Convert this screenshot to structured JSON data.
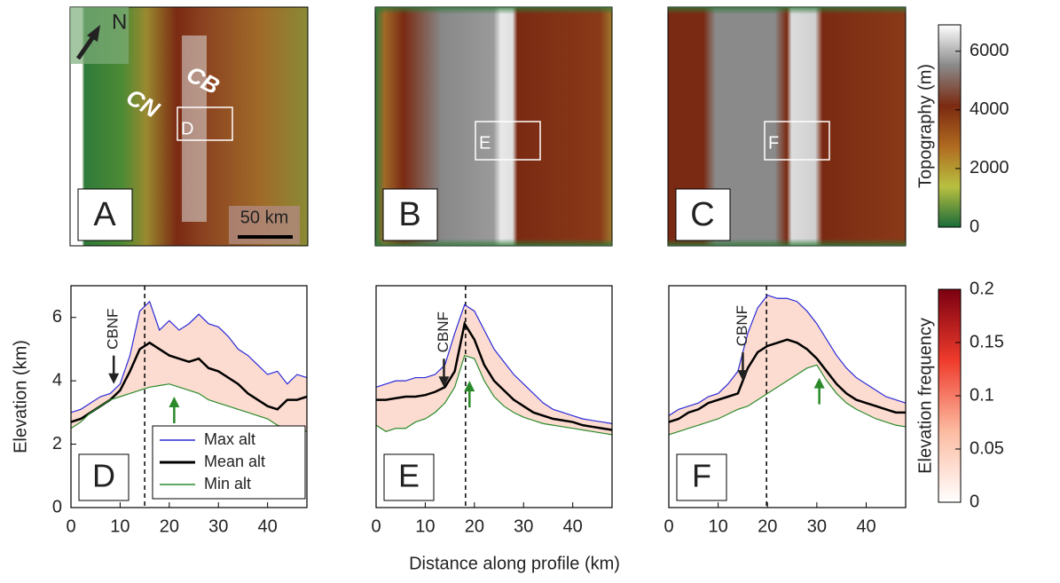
{
  "xlabel": "Distance along profile (km)",
  "maps": [
    {
      "panel": "A",
      "north": "N",
      "labels": [
        "CN",
        "CB"
      ],
      "box": "D",
      "scale": "50 km"
    },
    {
      "panel": "B",
      "box": "E"
    },
    {
      "panel": "C",
      "box": "F"
    }
  ],
  "chart_data": [
    {
      "type": "line",
      "panel": "D",
      "ylabel": "Elevation (km)",
      "x": [
        0,
        2,
        4,
        6,
        8,
        10,
        12,
        14,
        16,
        18,
        20,
        22,
        24,
        26,
        28,
        30,
        32,
        34,
        36,
        38,
        40,
        42,
        44,
        46,
        48
      ],
      "series": [
        {
          "name": "Max alt",
          "color": "#2a2ad8",
          "values": [
            3.0,
            3.1,
            3.3,
            3.5,
            3.6,
            3.9,
            4.8,
            6.2,
            6.5,
            5.6,
            5.9,
            5.6,
            5.8,
            6.1,
            5.8,
            5.7,
            5.4,
            5.0,
            4.8,
            4.5,
            4.2,
            4.3,
            3.9,
            4.2,
            4.1
          ]
        },
        {
          "name": "Mean alt",
          "color": "#000000",
          "values": [
            2.7,
            2.8,
            3.0,
            3.2,
            3.4,
            3.7,
            4.3,
            5.0,
            5.2,
            5.0,
            4.8,
            4.7,
            4.6,
            4.7,
            4.4,
            4.3,
            4.1,
            3.9,
            3.6,
            3.4,
            3.2,
            3.1,
            3.4,
            3.4,
            3.5
          ]
        },
        {
          "name": "Min alt",
          "color": "#2a8a2a",
          "values": [
            2.5,
            2.7,
            3.0,
            3.2,
            3.4,
            3.5,
            3.6,
            3.7,
            3.8,
            3.85,
            3.9,
            3.8,
            3.7,
            3.6,
            3.4,
            3.3,
            3.2,
            3.1,
            3.0,
            2.9,
            2.8,
            2.6,
            2.5,
            2.45,
            2.4
          ]
        }
      ],
      "xlim": [
        0,
        48
      ],
      "ylim": [
        0,
        7
      ],
      "xticks": [
        0,
        10,
        20,
        30,
        40
      ],
      "yticks": [
        0,
        2,
        4,
        6
      ],
      "vline": 15,
      "cbnf": {
        "text": "CBNF",
        "x": 8.7,
        "y": 3.9
      },
      "arrow": {
        "x": 21,
        "y": 3.5
      },
      "legend": "lower right"
    },
    {
      "type": "line",
      "panel": "E",
      "x": [
        0,
        2,
        4,
        6,
        8,
        10,
        12,
        14,
        16,
        18,
        20,
        22,
        24,
        26,
        28,
        30,
        32,
        34,
        36,
        38,
        40,
        42,
        44,
        46,
        48
      ],
      "series": [
        {
          "name": "Max alt",
          "color": "#2a2ad8",
          "values": [
            3.8,
            3.9,
            4.0,
            4.0,
            4.1,
            4.1,
            4.2,
            4.5,
            5.5,
            6.4,
            6.2,
            5.6,
            5.0,
            4.6,
            4.2,
            3.9,
            3.6,
            3.3,
            3.1,
            3.0,
            2.9,
            2.8,
            2.75,
            2.7,
            2.65
          ]
        },
        {
          "name": "Mean alt",
          "color": "#000000",
          "values": [
            3.4,
            3.4,
            3.45,
            3.5,
            3.5,
            3.55,
            3.65,
            3.8,
            4.3,
            5.8,
            5.3,
            4.5,
            4.0,
            3.7,
            3.4,
            3.2,
            3.0,
            2.9,
            2.8,
            2.75,
            2.7,
            2.6,
            2.55,
            2.5,
            2.45
          ]
        },
        {
          "name": "Min alt",
          "color": "#2a8a2a",
          "values": [
            2.6,
            2.4,
            2.5,
            2.5,
            2.7,
            2.8,
            3.0,
            3.3,
            3.8,
            4.8,
            4.7,
            4.0,
            3.5,
            3.2,
            3.0,
            2.85,
            2.75,
            2.65,
            2.6,
            2.55,
            2.5,
            2.45,
            2.4,
            2.35,
            2.3
          ]
        }
      ],
      "xlim": [
        0,
        48
      ],
      "ylim": [
        0,
        7
      ],
      "xticks": [
        0,
        10,
        20,
        30,
        40
      ],
      "vline": 18.2,
      "cbnf": {
        "text": "CBNF",
        "x": 13.8,
        "y": 3.8
      },
      "arrow": {
        "x": 19,
        "y": 4.0
      }
    },
    {
      "type": "line",
      "panel": "F",
      "x": [
        0,
        2,
        4,
        6,
        8,
        10,
        12,
        14,
        16,
        18,
        20,
        22,
        24,
        26,
        28,
        30,
        32,
        34,
        36,
        38,
        40,
        42,
        44,
        46,
        48
      ],
      "series": [
        {
          "name": "Max alt",
          "color": "#2a2ad8",
          "values": [
            2.9,
            3.1,
            3.2,
            3.3,
            3.5,
            3.6,
            3.9,
            4.3,
            5.5,
            6.3,
            6.7,
            6.6,
            6.6,
            6.5,
            6.2,
            5.8,
            5.3,
            4.8,
            4.4,
            4.1,
            3.9,
            3.7,
            3.5,
            3.4,
            3.3
          ]
        },
        {
          "name": "Mean alt",
          "color": "#000000",
          "values": [
            2.7,
            2.8,
            3.0,
            3.1,
            3.3,
            3.4,
            3.5,
            3.6,
            4.4,
            4.9,
            5.1,
            5.2,
            5.3,
            5.2,
            5.0,
            4.7,
            4.3,
            3.9,
            3.6,
            3.4,
            3.3,
            3.2,
            3.1,
            3.0,
            3.0
          ]
        },
        {
          "name": "Min alt",
          "color": "#2a8a2a",
          "values": [
            2.3,
            2.4,
            2.5,
            2.6,
            2.7,
            2.8,
            2.95,
            3.1,
            3.2,
            3.4,
            3.6,
            3.8,
            4.0,
            4.2,
            4.4,
            4.5,
            4.0,
            3.6,
            3.3,
            3.1,
            2.95,
            2.8,
            2.7,
            2.6,
            2.55
          ]
        }
      ],
      "xlim": [
        0,
        48
      ],
      "ylim": [
        0,
        7
      ],
      "xticks": [
        0,
        10,
        20,
        30,
        40
      ],
      "vline": 19.8,
      "cbnf": {
        "text": "CBNF",
        "x": 15,
        "y": 4.0
      },
      "arrow": {
        "x": 30.5,
        "y": 4.1
      }
    },
    {
      "type": "colorbar",
      "label": "Topography (m)",
      "colors": [
        "#1a6b3a",
        "#b8c040",
        "#b06a20",
        "#7a2a10",
        "#8a8a8a",
        "#ffffff"
      ],
      "ylim": [
        0,
        6900
      ],
      "yticks": [
        0,
        2000,
        4000,
        6000
      ]
    },
    {
      "type": "colorbar",
      "label": "Elevation frequency",
      "colors": [
        "#ffffff",
        "#fcbba1",
        "#ef3b2c",
        "#7a0010"
      ],
      "ylim": [
        0,
        0.2
      ],
      "yticks": [
        0,
        0.05,
        0.1,
        0.15,
        0.2
      ]
    }
  ]
}
